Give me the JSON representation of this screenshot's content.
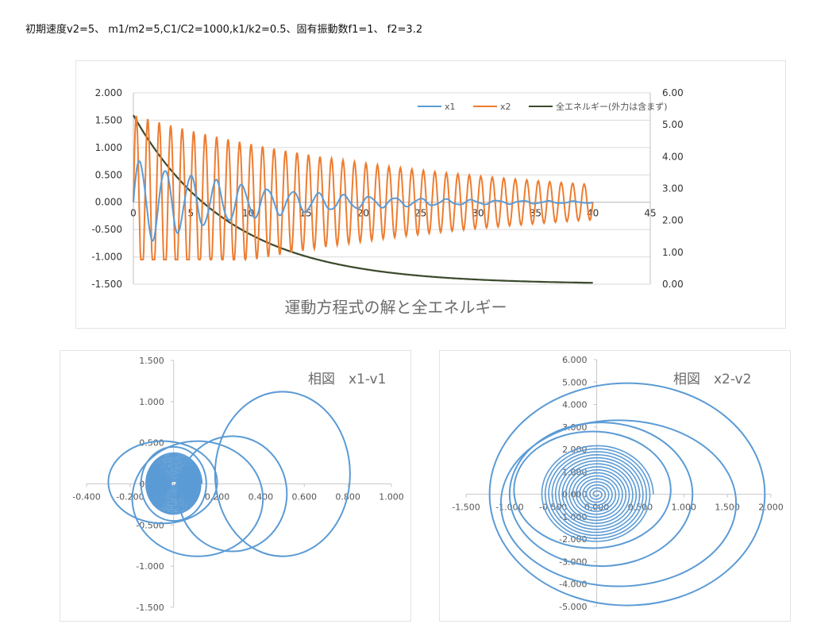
{
  "header": {
    "text": "初期速度v2=5、 m1/m2=5,C1/C2=1000,k1/k2=0.5、固有振動数f1=1、 f2=3.2"
  },
  "chart_data": [
    {
      "type": "line",
      "title": "運動方程式の解と全エネルギー",
      "xlim": [
        0,
        45
      ],
      "ylim_left": [
        -1.5,
        2.0
      ],
      "ylim_right": [
        0.0,
        6.0
      ],
      "x_ticks": [
        "0",
        "5",
        "10",
        "15",
        "20",
        "25",
        "30",
        "35",
        "40",
        "45"
      ],
      "y_left_ticks": [
        "2.000",
        "1.500",
        "1.000",
        "0.500",
        "0.000",
        "-0.500",
        "-1.000",
        "-1.500"
      ],
      "y_right_ticks": [
        "6.00",
        "5.00",
        "4.00",
        "3.00",
        "2.00",
        "1.00",
        "0.00"
      ],
      "grid": true,
      "legend_position": "top-right",
      "series": [
        {
          "name": "x1",
          "axis": "left",
          "color": "#5b9bd5",
          "model": {
            "x_end": 40,
            "amplitude": 0.8,
            "frequency": 0.45,
            "decay": 0.1,
            "coupled_amplitude": 0.04,
            "coupled_frequency": 1.0,
            "coupled_decay": 0.06
          }
        },
        {
          "name": "x2",
          "axis": "left",
          "color": "#ed7d31",
          "model": {
            "x_end": 40,
            "amplitude": 1.6,
            "frequency": 1.0,
            "decay": 0.04,
            "floor": 0.03,
            "peak": 1.58
          }
        },
        {
          "name": "全エネルギー(外力は含まず)",
          "axis": "right",
          "color": "#3a4a2b",
          "model": {
            "x_end": 40,
            "start": 5.3,
            "end": 0.0,
            "decay": 0.12
          }
        }
      ]
    },
    {
      "type": "scatter",
      "title": "相図　x1-v1",
      "xlim": [
        -0.4,
        1.0
      ],
      "ylim": [
        -1.5,
        1.5
      ],
      "x_ticks": [
        "-0.400",
        "-0.200",
        "0.000",
        "0.200",
        "0.400",
        "0.600",
        "0.800",
        "1.000"
      ],
      "y_ticks": [
        "1.500",
        "1.000",
        "0.500",
        "0.000",
        "-0.500",
        "-1.000",
        "-1.500"
      ],
      "color": "#5b9bd5",
      "loops": [
        {
          "cx": 0.5,
          "cy": 0.12,
          "rx": 0.31,
          "ry": 1.0
        },
        {
          "cx": 0.27,
          "cy": -0.12,
          "rx": 0.25,
          "ry": 0.7
        },
        {
          "cx": 0.11,
          "cy": -0.18,
          "rx": 0.3,
          "ry": 0.7
        },
        {
          "cx": -0.05,
          "cy": 0.02,
          "rx": 0.25,
          "ry": 0.5
        },
        {
          "cx": 0.0,
          "cy": 0.0,
          "rx": 0.15,
          "ry": 0.45
        }
      ],
      "spiral": {
        "turns": 22,
        "x_start": 0.13,
        "y_start": 0.38,
        "x_end": 0.01,
        "y_end": 0.02
      }
    },
    {
      "type": "scatter",
      "title": "相図　x2-v2",
      "xlim": [
        -1.5,
        2.0
      ],
      "ylim": [
        -5.0,
        6.0
      ],
      "x_ticks": [
        "-1.500",
        "-1.000",
        "-0.500",
        "0.000",
        "0.500",
        "1.000",
        "1.500",
        "2.000"
      ],
      "y_ticks": [
        "6.000",
        "5.000",
        "4.000",
        "3.000",
        "2.000",
        "1.000",
        "0.000",
        "-1.000",
        "-2.000",
        "-3.000",
        "-4.000",
        "-5.000"
      ],
      "color": "#5b9bd5",
      "loops": [
        {
          "cx": 0.35,
          "cy": 0.0,
          "rx": 1.58,
          "ry": 4.95
        },
        {
          "cx": 0.25,
          "cy": -0.4,
          "rx": 1.35,
          "ry": 3.7
        },
        {
          "cx": 0.05,
          "cy": 0.0,
          "rx": 1.05,
          "ry": 3.2
        },
        {
          "cx": -0.05,
          "cy": 0.2,
          "rx": 0.9,
          "ry": 2.6
        }
      ],
      "spiral": {
        "turns": 16,
        "x_start": 0.65,
        "y_start": 2.2,
        "x_end": 0.02,
        "y_end": 0.05
      }
    }
  ]
}
